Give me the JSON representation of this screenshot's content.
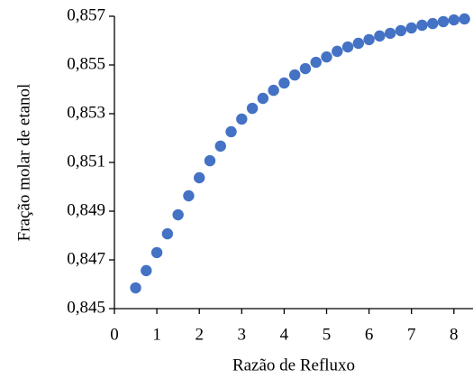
{
  "chart_data": {
    "type": "scatter",
    "xlabel": "Razão de Refluxo",
    "ylabel": "Fração molar de etanol",
    "x": [
      0.5,
      0.75,
      1.0,
      1.25,
      1.5,
      1.75,
      2.0,
      2.25,
      2.5,
      2.75,
      3.0,
      3.25,
      3.5,
      3.75,
      4.0,
      4.25,
      4.5,
      4.75,
      5.0,
      5.25,
      5.5,
      5.75,
      6.0,
      6.25,
      6.5,
      6.75,
      7.0,
      7.25,
      7.5,
      7.75,
      8.0,
      8.25
    ],
    "values": [
      0.84585,
      0.84656,
      0.8473,
      0.84807,
      0.84885,
      0.84963,
      0.85037,
      0.85107,
      0.85167,
      0.85226,
      0.85278,
      0.85322,
      0.85363,
      0.85396,
      0.85426,
      0.85459,
      0.85485,
      0.85511,
      0.85533,
      0.85556,
      0.85574,
      0.85589,
      0.85604,
      0.85619,
      0.8563,
      0.85641,
      0.85652,
      0.85663,
      0.8567,
      0.85678,
      0.85685,
      0.85689
    ],
    "color": "#4472c4",
    "xlim": [
      0,
      8.45
    ],
    "xticks": [
      0,
      1,
      2,
      3,
      4,
      5,
      6,
      7,
      8
    ],
    "ylim": [
      0.845,
      0.857
    ],
    "yticks": [
      {
        "value": 0.845,
        "label": "0,845"
      },
      {
        "value": 0.847,
        "label": "0,847"
      },
      {
        "value": 0.849,
        "label": "0,849"
      },
      {
        "value": 0.851,
        "label": "0,851"
      },
      {
        "value": 0.853,
        "label": "0,853"
      },
      {
        "value": 0.855,
        "label": "0,855"
      },
      {
        "value": 0.857,
        "label": "0,857"
      }
    ]
  }
}
